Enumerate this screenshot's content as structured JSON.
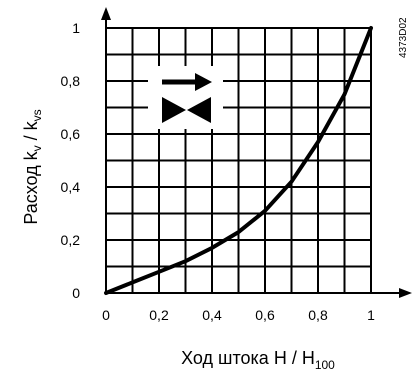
{
  "chart_data": {
    "type": "line",
    "xlabel": {
      "main": "Ход штока H / H",
      "sub": "100"
    },
    "ylabel": {
      "main": "Расход  k",
      "sub1": "v",
      "mid": " / k",
      "sub2": "vs"
    },
    "xlim": [
      0,
      1
    ],
    "ylim": [
      0,
      1
    ],
    "grid": true,
    "x_ticks": [
      "0",
      "0,2",
      "0,4",
      "0,6",
      "0,8",
      "1"
    ],
    "y_ticks": [
      "0",
      "0,2",
      "0,4",
      "0,6",
      "0,8",
      "1"
    ],
    "x_tick_values": [
      0,
      0.2,
      0.4,
      0.6,
      0.8,
      1
    ],
    "y_tick_values": [
      0,
      0.2,
      0.4,
      0.6,
      0.8,
      1
    ],
    "series": [
      {
        "color": "#000000",
        "x": [
          0,
          0.1,
          0.2,
          0.3,
          0.4,
          0.5,
          0.6,
          0.7,
          0.8,
          0.9,
          1
        ],
        "y": [
          0,
          0.04,
          0.08,
          0.12,
          0.17,
          0.23,
          0.31,
          0.42,
          0.57,
          0.75,
          1
        ]
      }
    ],
    "annotation_code": "4373D02",
    "inset_icon": "valve-flow-direction-icon"
  }
}
